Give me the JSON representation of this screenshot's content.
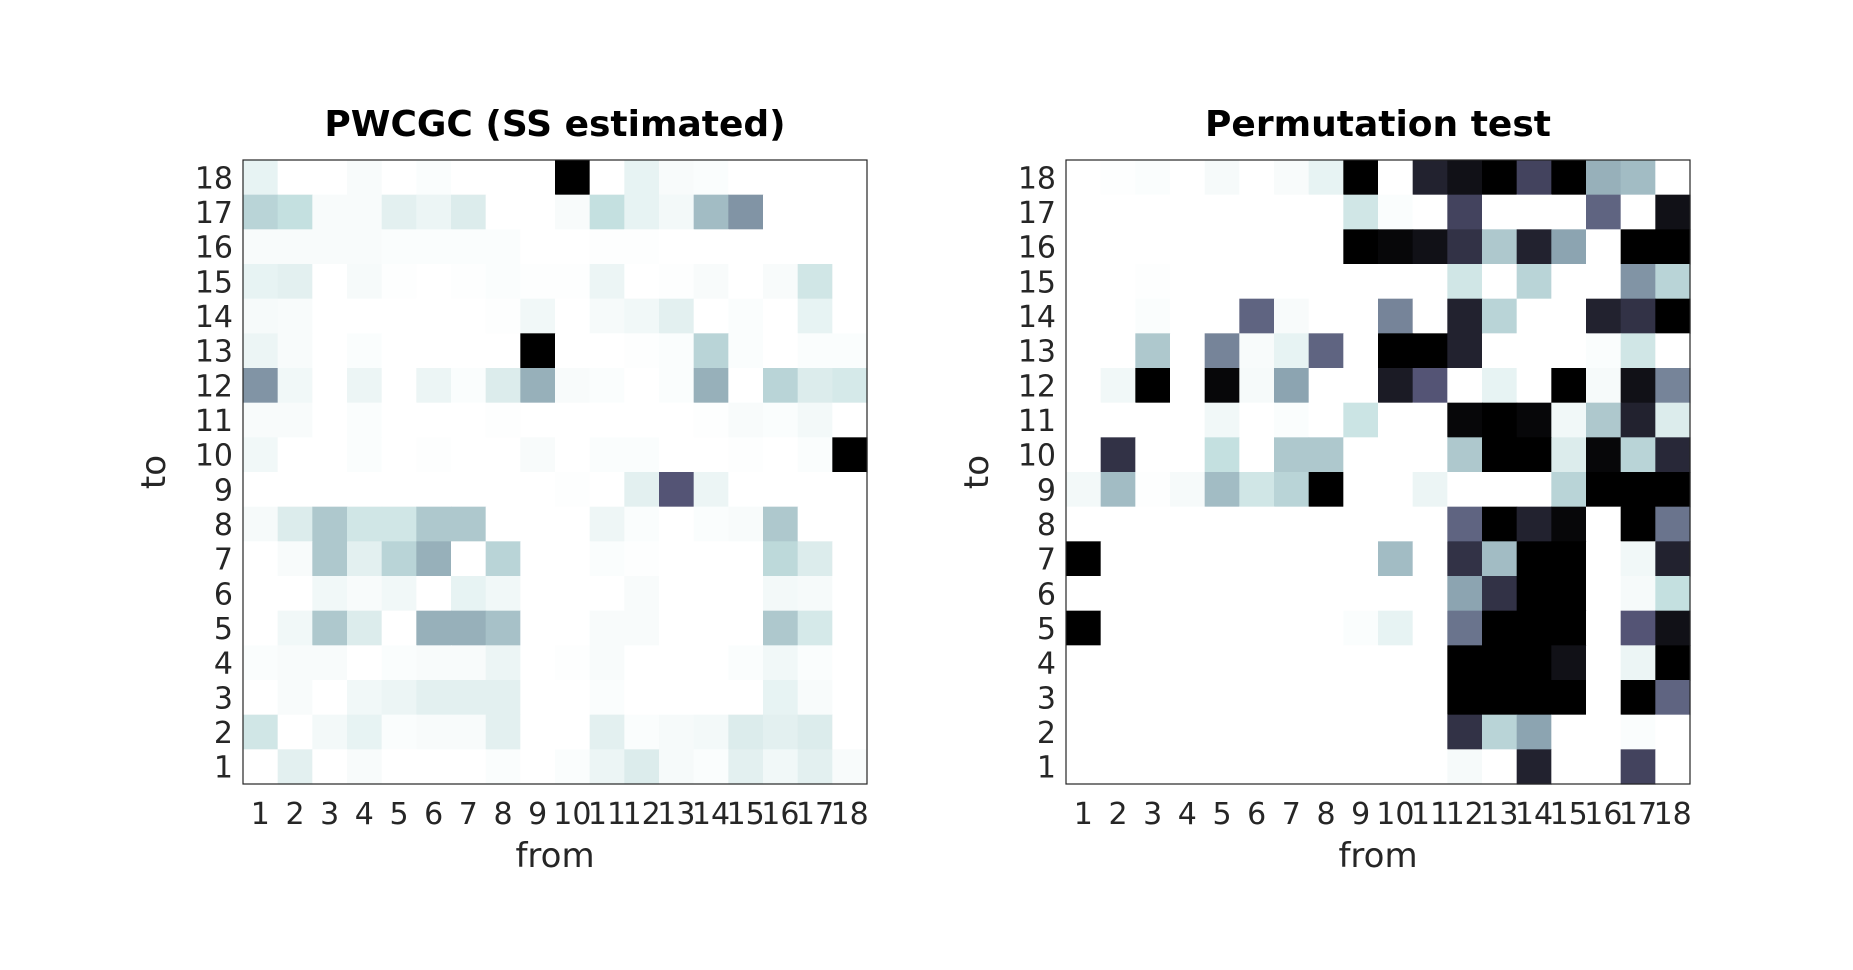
{
  "chart_data": [
    {
      "type": "heatmap",
      "title": "PWCGC (SS estimated)",
      "xlabel": "from",
      "ylabel": "to",
      "x_ticks": [
        "1",
        "2",
        "3",
        "4",
        "5",
        "6",
        "7",
        "8",
        "9",
        "10",
        "11",
        "12",
        "13",
        "14",
        "15",
        "16",
        "17",
        "18"
      ],
      "y_ticks": [
        "1",
        "2",
        "3",
        "4",
        "5",
        "6",
        "7",
        "8",
        "9",
        "10",
        "11",
        "12",
        "13",
        "14",
        "15",
        "16",
        "17",
        "18"
      ],
      "colormap": "bone (reversed): white = 0, black = 1",
      "note": "matrix rows are ordered from 'to'=18 (top) down to 'to'=1 (bottom); columns are 'from'=1..18; values are normalized intensity 0-1",
      "matrix": [
        [
          0.1,
          0,
          0,
          0.03,
          0,
          0.02,
          0,
          0,
          0,
          1.0,
          0,
          0.1,
          0.03,
          0.02,
          0,
          0,
          0,
          0
        ],
        [
          0.3,
          0.25,
          0.03,
          0.03,
          0.12,
          0.08,
          0.15,
          0,
          0,
          0.03,
          0.25,
          0.1,
          0.05,
          0.4,
          0.55,
          0,
          0,
          0
        ],
        [
          0.03,
          0.03,
          0.03,
          0.03,
          0.02,
          0.02,
          0.02,
          0.02,
          0,
          0,
          0.01,
          0.01,
          0,
          0,
          0,
          0,
          0,
          0
        ],
        [
          0.1,
          0.12,
          0,
          0.04,
          0.01,
          0,
          0.01,
          0.02,
          0.01,
          0.01,
          0.08,
          0,
          0.01,
          0.03,
          0,
          0.03,
          0.2,
          0
        ],
        [
          0.04,
          0.03,
          0,
          0,
          0,
          0,
          0,
          0.01,
          0.06,
          0,
          0.04,
          0.06,
          0.12,
          0,
          0.02,
          0,
          0.1,
          0
        ],
        [
          0.08,
          0.03,
          0,
          0.02,
          0,
          0,
          0,
          0,
          1.0,
          0,
          0,
          0.01,
          0.02,
          0.3,
          0.02,
          0,
          0.02,
          0.02
        ],
        [
          0.55,
          0.06,
          0,
          0.08,
          0,
          0.08,
          0.02,
          0.15,
          0.45,
          0.03,
          0.02,
          0,
          0.02,
          0.45,
          0,
          0.3,
          0.15,
          0.18
        ],
        [
          0.03,
          0.03,
          0,
          0.02,
          0,
          0,
          0,
          0.01,
          0,
          0,
          0,
          0,
          0,
          0.01,
          0.03,
          0.02,
          0.05,
          0
        ],
        [
          0.06,
          0,
          0,
          0.02,
          0,
          0.01,
          0,
          0,
          0.03,
          0,
          0.02,
          0.02,
          0,
          0,
          0.01,
          0,
          0.02,
          1.0
        ],
        [
          0,
          0,
          0,
          0,
          0,
          0,
          0,
          0,
          0,
          0.01,
          0,
          0.12,
          0.75,
          0.08,
          0,
          0,
          0,
          0
        ],
        [
          0.04,
          0.15,
          0.35,
          0.2,
          0.2,
          0.35,
          0.35,
          0,
          0,
          0,
          0.07,
          0.02,
          0,
          0.02,
          0.03,
          0.35,
          0,
          0
        ],
        [
          0,
          0.03,
          0.35,
          0.12,
          0.3,
          0.45,
          0,
          0.3,
          0,
          0,
          0.02,
          0.01,
          0,
          0,
          0,
          0.28,
          0.15,
          0
        ],
        [
          0,
          0,
          0.06,
          0.03,
          0.06,
          0,
          0.1,
          0.06,
          0,
          0,
          0,
          0.03,
          0,
          0,
          0,
          0.05,
          0.04,
          0
        ],
        [
          0,
          0.06,
          0.35,
          0.15,
          0,
          0.45,
          0.45,
          0.38,
          0,
          0,
          0.03,
          0.03,
          0,
          0,
          0,
          0.35,
          0.18,
          0
        ],
        [
          0.02,
          0.03,
          0.03,
          0,
          0.02,
          0.03,
          0.03,
          0.08,
          0,
          0.01,
          0.03,
          0,
          0,
          0,
          0.02,
          0.06,
          0.02,
          0
        ],
        [
          0,
          0.03,
          0,
          0.06,
          0.08,
          0.12,
          0.12,
          0.12,
          0,
          0,
          0.02,
          0,
          0,
          0,
          0,
          0.1,
          0.03,
          0
        ],
        [
          0.2,
          0,
          0.05,
          0.1,
          0.02,
          0.03,
          0.03,
          0.12,
          0,
          0,
          0.12,
          0.02,
          0.04,
          0.05,
          0.15,
          0.12,
          0.15,
          0
        ],
        [
          0,
          0.12,
          0,
          0.03,
          0,
          0,
          0,
          0.02,
          0,
          0.02,
          0.08,
          0.15,
          0.04,
          0.02,
          0.12,
          0.06,
          0.12,
          0.03
        ]
      ]
    },
    {
      "type": "heatmap",
      "title": "Permutation test",
      "xlabel": "from",
      "ylabel": "to",
      "x_ticks": [
        "1",
        "2",
        "3",
        "4",
        "5",
        "6",
        "7",
        "8",
        "9",
        "10",
        "11",
        "12",
        "13",
        "14",
        "15",
        "16",
        "17",
        "18"
      ],
      "y_ticks": [
        "1",
        "2",
        "3",
        "4",
        "5",
        "6",
        "7",
        "8",
        "9",
        "10",
        "11",
        "12",
        "13",
        "14",
        "15",
        "16",
        "17",
        "18"
      ],
      "colormap": "bone (reversed): white = 0, black = 1",
      "note": "matrix rows are ordered from 'to'=18 (top) down to 'to'=1 (bottom); columns are 'from'=1..18; values are normalized intensity 0-1",
      "matrix": [
        [
          0,
          0.01,
          0.02,
          0,
          0.04,
          0,
          0.03,
          0.1,
          1.0,
          0,
          0.9,
          0.95,
          1.0,
          0.8,
          1.0,
          0.45,
          0.4,
          0
        ],
        [
          0,
          0,
          0,
          0,
          0,
          0,
          0,
          0,
          0.2,
          0.02,
          0,
          0.8,
          0,
          0,
          0,
          0.7,
          0,
          0.95
        ],
        [
          0,
          0,
          0,
          0,
          0,
          0,
          0,
          0,
          1.0,
          0.98,
          0.95,
          0.85,
          0.35,
          0.9,
          0.5,
          0,
          1.0,
          1.0
        ],
        [
          0,
          0,
          0.01,
          0,
          0,
          0,
          0,
          0,
          0,
          0,
          0,
          0.2,
          0,
          0.3,
          0,
          0,
          0.55,
          0.3
        ],
        [
          0,
          0,
          0.02,
          0,
          0,
          0.7,
          0.03,
          0,
          0,
          0.6,
          0,
          0.9,
          0.3,
          0,
          0,
          0.9,
          0.85,
          1.0
        ],
        [
          0,
          0,
          0.35,
          0,
          0.6,
          0.03,
          0.1,
          0.7,
          0,
          1.0,
          1.0,
          0.9,
          0,
          0,
          0,
          0.02,
          0.2,
          0
        ],
        [
          0,
          0.06,
          1.0,
          0,
          0.98,
          0.04,
          0.5,
          0,
          0,
          0.92,
          0.75,
          0,
          0.1,
          0,
          1.0,
          0.04,
          0.95,
          0.6
        ],
        [
          0,
          0,
          0,
          0,
          0.06,
          0,
          0.02,
          0,
          0.22,
          0,
          0,
          0.98,
          1.0,
          0.98,
          0.06,
          0.35,
          0.9,
          0.15
        ],
        [
          0,
          0.85,
          0,
          0,
          0.25,
          0,
          0.35,
          0.35,
          0,
          0,
          0,
          0.35,
          1.0,
          1.0,
          0.15,
          0.98,
          0.3,
          0.88
        ],
        [
          0.05,
          0.4,
          0.01,
          0.04,
          0.4,
          0.2,
          0.3,
          1.0,
          0,
          0,
          0.08,
          0,
          0,
          0,
          0.3,
          1.0,
          1.0,
          1.0
        ],
        [
          0,
          0,
          0,
          0,
          0,
          0,
          0,
          0,
          0,
          0,
          0,
          0.7,
          1.0,
          0.9,
          0.98,
          0,
          1.0,
          0.65
        ],
        [
          1.0,
          0,
          0,
          0,
          0,
          0,
          0,
          0,
          0,
          0.4,
          0,
          0.85,
          0.4,
          1.0,
          1.0,
          0,
          0.06,
          0.9
        ],
        [
          0,
          0,
          0,
          0,
          0,
          0,
          0,
          0,
          0,
          0,
          0,
          0.5,
          0.85,
          1.0,
          1.0,
          0,
          0.04,
          0.25
        ],
        [
          1.0,
          0,
          0,
          0,
          0,
          0,
          0,
          0,
          0.02,
          0.1,
          0,
          0.65,
          1.0,
          1.0,
          1.0,
          0,
          0.75,
          0.95
        ],
        [
          0,
          0,
          0,
          0,
          0,
          0,
          0,
          0,
          0,
          0,
          0,
          1.0,
          1.0,
          1.0,
          0.95,
          0,
          0.08,
          1.0
        ],
        [
          0,
          0,
          0,
          0,
          0,
          0,
          0,
          0,
          0,
          0,
          0,
          1.0,
          1.0,
          1.0,
          1.0,
          0,
          1.0,
          0.7
        ],
        [
          0,
          0,
          0,
          0,
          0,
          0,
          0,
          0,
          0,
          0,
          0,
          0.85,
          0.3,
          0.5,
          0,
          0,
          0.02,
          0
        ],
        [
          0,
          0,
          0,
          0,
          0,
          0,
          0,
          0,
          0,
          0,
          0,
          0.04,
          0,
          0.9,
          0,
          0,
          0.8,
          0
        ]
      ]
    }
  ]
}
